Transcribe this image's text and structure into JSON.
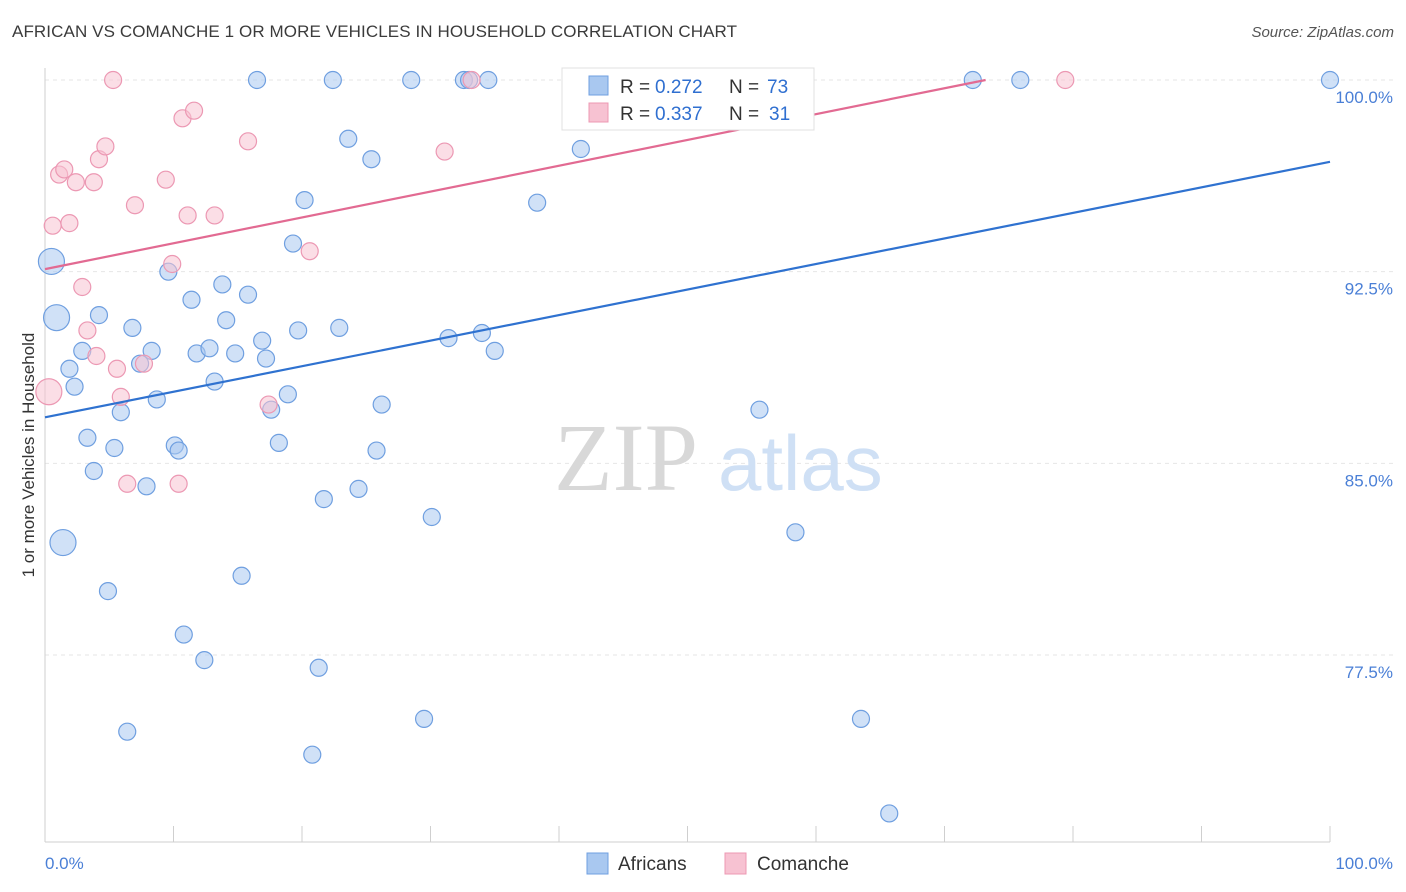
{
  "header": {
    "title": "AFRICAN VS COMANCHE 1 OR MORE VEHICLES IN HOUSEHOLD CORRELATION CHART",
    "source": "Source: ZipAtlas.com"
  },
  "watermark": {
    "zip": "ZIP",
    "atlas": "atlas"
  },
  "legend_top": {
    "rows": [
      {
        "r_label": "R =",
        "r_value": "0.272",
        "n_label": "N =",
        "n_value": "73"
      },
      {
        "r_label": "R =",
        "r_value": "0.337",
        "n_label": "N =",
        "n_value": "31"
      }
    ]
  },
  "legend_bottom": {
    "items": [
      "Africans",
      "Comanche"
    ]
  },
  "colors": {
    "africans_fill": "#a9c8f0",
    "africans_stroke": "#6f9fe0",
    "africans_line": "#2f72d0",
    "comanche_fill": "#f7c2d2",
    "comanche_stroke": "#ec98b3",
    "comanche_line": "#e26a92",
    "grid": "#e6e6e6",
    "tick_text": "#4a7fd6"
  },
  "chart_data": {
    "type": "scatter",
    "title": "AFRICAN VS COMANCHE 1 OR MORE VEHICLES IN HOUSEHOLD CORRELATION CHART",
    "xlabel": "",
    "ylabel": "1 or more Vehicles in Household",
    "xlim": [
      0,
      100
    ],
    "ylim": [
      71.0,
      100.6
    ],
    "x_tick_labels": [
      "0.0%",
      "100.0%"
    ],
    "y_tick_labels": [
      "100.0%",
      "92.5%",
      "85.0%",
      "77.5%"
    ],
    "y_tick_values": [
      100.0,
      92.5,
      85.0,
      77.5
    ],
    "grid": true,
    "legend_placement": "top-center",
    "series": [
      {
        "name": "Africans",
        "r": 0.272,
        "n": 73,
        "trend": {
          "x": [
            0,
            100
          ],
          "y": [
            86.8,
            96.8
          ]
        },
        "points": [
          {
            "x": 0.5,
            "y": 92.9,
            "big": true
          },
          {
            "x": 0.9,
            "y": 90.7,
            "big": true
          },
          {
            "x": 1.4,
            "y": 81.9,
            "big": true
          },
          {
            "x": 1.9,
            "y": 88.7
          },
          {
            "x": 2.3,
            "y": 88.0
          },
          {
            "x": 2.9,
            "y": 89.4
          },
          {
            "x": 3.3,
            "y": 86.0
          },
          {
            "x": 3.8,
            "y": 84.7
          },
          {
            "x": 4.2,
            "y": 90.8
          },
          {
            "x": 4.9,
            "y": 80.0
          },
          {
            "x": 5.4,
            "y": 85.6
          },
          {
            "x": 5.9,
            "y": 87.0
          },
          {
            "x": 6.4,
            "y": 74.5
          },
          {
            "x": 6.8,
            "y": 90.3
          },
          {
            "x": 7.4,
            "y": 88.9
          },
          {
            "x": 7.9,
            "y": 84.1
          },
          {
            "x": 8.3,
            "y": 89.4
          },
          {
            "x": 8.7,
            "y": 87.5
          },
          {
            "x": 9.6,
            "y": 92.5
          },
          {
            "x": 10.1,
            "y": 85.7
          },
          {
            "x": 10.4,
            "y": 85.5
          },
          {
            "x": 10.8,
            "y": 78.3
          },
          {
            "x": 11.4,
            "y": 91.4
          },
          {
            "x": 11.8,
            "y": 89.3
          },
          {
            "x": 12.4,
            "y": 77.3
          },
          {
            "x": 12.8,
            "y": 89.5
          },
          {
            "x": 13.2,
            "y": 88.2
          },
          {
            "x": 13.8,
            "y": 92.0
          },
          {
            "x": 14.1,
            "y": 90.6
          },
          {
            "x": 14.8,
            "y": 89.3
          },
          {
            "x": 15.3,
            "y": 80.6
          },
          {
            "x": 15.8,
            "y": 91.6
          },
          {
            "x": 16.5,
            "y": 100.0
          },
          {
            "x": 16.9,
            "y": 89.8
          },
          {
            "x": 17.2,
            "y": 89.1
          },
          {
            "x": 17.6,
            "y": 87.1
          },
          {
            "x": 18.2,
            "y": 85.8
          },
          {
            "x": 18.9,
            "y": 87.7
          },
          {
            "x": 19.3,
            "y": 93.6
          },
          {
            "x": 19.7,
            "y": 90.2
          },
          {
            "x": 20.2,
            "y": 95.3
          },
          {
            "x": 20.8,
            "y": 73.6
          },
          {
            "x": 21.3,
            "y": 77.0
          },
          {
            "x": 21.7,
            "y": 83.6
          },
          {
            "x": 22.4,
            "y": 100.0
          },
          {
            "x": 22.9,
            "y": 90.3
          },
          {
            "x": 23.6,
            "y": 97.7
          },
          {
            "x": 24.4,
            "y": 84.0
          },
          {
            "x": 25.4,
            "y": 96.9
          },
          {
            "x": 25.8,
            "y": 85.5
          },
          {
            "x": 26.2,
            "y": 87.3
          },
          {
            "x": 28.5,
            "y": 100.0
          },
          {
            "x": 29.5,
            "y": 75.0
          },
          {
            "x": 30.1,
            "y": 82.9
          },
          {
            "x": 31.4,
            "y": 89.9
          },
          {
            "x": 32.6,
            "y": 100.0
          },
          {
            "x": 33.0,
            "y": 100.0
          },
          {
            "x": 34.0,
            "y": 90.1
          },
          {
            "x": 34.5,
            "y": 100.0
          },
          {
            "x": 35.0,
            "y": 89.4
          },
          {
            "x": 38.3,
            "y": 95.2
          },
          {
            "x": 41.7,
            "y": 97.3
          },
          {
            "x": 42.5,
            "y": 100.0
          },
          {
            "x": 55.2,
            "y": 100.0
          },
          {
            "x": 57.1,
            "y": 100.0
          },
          {
            "x": 58.9,
            "y": 100.0
          },
          {
            "x": 55.6,
            "y": 87.1
          },
          {
            "x": 58.4,
            "y": 82.3
          },
          {
            "x": 63.5,
            "y": 75.0
          },
          {
            "x": 65.7,
            "y": 71.3
          },
          {
            "x": 72.2,
            "y": 100.0
          },
          {
            "x": 75.9,
            "y": 100.0
          },
          {
            "x": 100.0,
            "y": 100.0
          }
        ]
      },
      {
        "name": "Comanche",
        "r": 0.337,
        "n": 31,
        "trend": {
          "x": [
            0,
            73.2
          ],
          "y": [
            92.6,
            100.0
          ]
        },
        "points": [
          {
            "x": 0.3,
            "y": 87.8,
            "big": true
          },
          {
            "x": 0.6,
            "y": 94.3
          },
          {
            "x": 1.1,
            "y": 96.3
          },
          {
            "x": 1.5,
            "y": 96.5
          },
          {
            "x": 1.9,
            "y": 94.4
          },
          {
            "x": 2.4,
            "y": 96.0
          },
          {
            "x": 2.9,
            "y": 91.9
          },
          {
            "x": 3.3,
            "y": 90.2
          },
          {
            "x": 3.8,
            "y": 96.0
          },
          {
            "x": 4.0,
            "y": 89.2
          },
          {
            "x": 4.2,
            "y": 96.9
          },
          {
            "x": 4.7,
            "y": 97.4
          },
          {
            "x": 5.3,
            "y": 100.0
          },
          {
            "x": 5.6,
            "y": 88.7
          },
          {
            "x": 5.9,
            "y": 87.6
          },
          {
            "x": 6.4,
            "y": 84.2
          },
          {
            "x": 7.0,
            "y": 95.1
          },
          {
            "x": 7.7,
            "y": 88.9
          },
          {
            "x": 9.4,
            "y": 96.1
          },
          {
            "x": 9.9,
            "y": 92.8
          },
          {
            "x": 10.4,
            "y": 84.2
          },
          {
            "x": 10.7,
            "y": 98.5
          },
          {
            "x": 11.1,
            "y": 94.7
          },
          {
            "x": 11.6,
            "y": 98.8
          },
          {
            "x": 13.2,
            "y": 94.7
          },
          {
            "x": 15.8,
            "y": 97.6
          },
          {
            "x": 17.4,
            "y": 87.3
          },
          {
            "x": 20.6,
            "y": 93.3
          },
          {
            "x": 31.1,
            "y": 97.2
          },
          {
            "x": 33.2,
            "y": 100.0
          },
          {
            "x": 79.4,
            "y": 100.0
          }
        ]
      }
    ]
  }
}
